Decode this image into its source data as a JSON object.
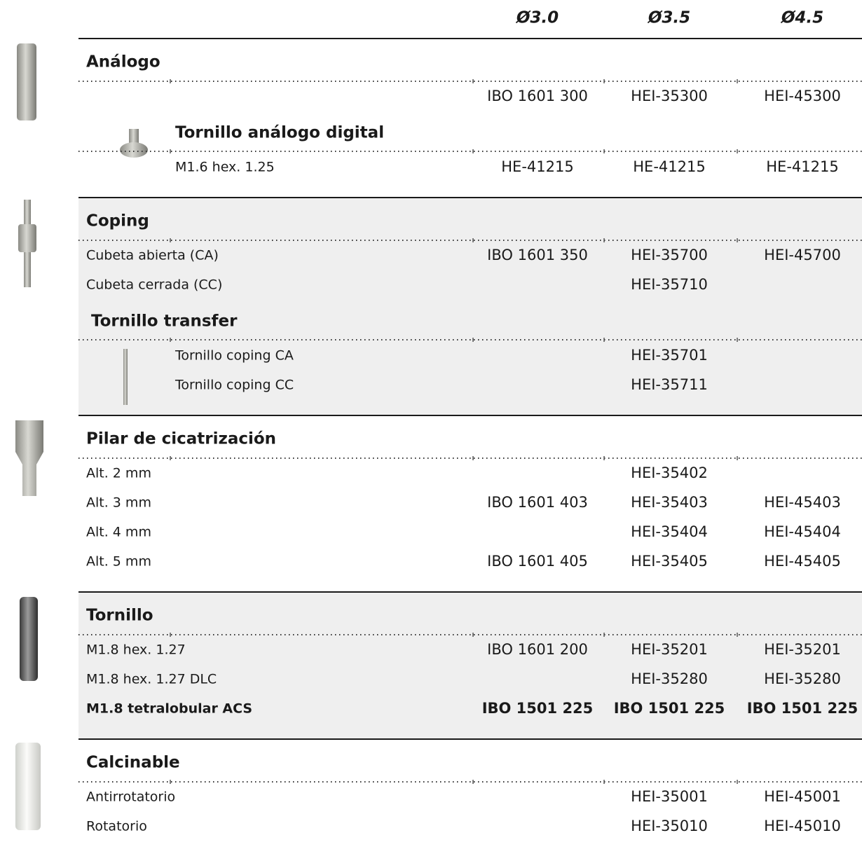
{
  "header": {
    "columns": [
      "Ø3.0",
      "Ø3.5",
      "Ø4.5"
    ]
  },
  "sections": [
    {
      "title": "Análogo",
      "rows": [
        [
          null,
          "IBO 1601 300",
          "HEI-35300",
          "HEI-45300"
        ]
      ],
      "sub": {
        "title": "Tornillo análogo digital",
        "rows": [
          [
            "M1.6 hex. 1.25",
            "HE-41215",
            "HE-41215",
            "HE-41215"
          ]
        ]
      }
    },
    {
      "title": "Coping",
      "rows": [
        [
          "Cubeta abierta (CA)",
          "IBO 1601 350",
          "HEI-35700",
          "HEI-45700"
        ],
        [
          "Cubeta cerrada (CC)",
          null,
          "HEI-35710",
          null
        ]
      ],
      "sub": {
        "title": "Tornillo transfer",
        "rows": [
          [
            "Tornillo coping CA",
            null,
            "HEI-35701",
            null
          ],
          [
            "Tornillo coping CC",
            null,
            "HEI-35711",
            null
          ]
        ]
      }
    },
    {
      "title": "Pilar de cicatrización",
      "rows": [
        [
          "Alt. 2 mm",
          null,
          "HEI-35402",
          null
        ],
        [
          "Alt. 3 mm",
          "IBO 1601 403",
          "HEI-35403",
          "HEI-45403"
        ],
        [
          "Alt. 4 mm",
          null,
          "HEI-35404",
          "HEI-45404"
        ],
        [
          "Alt. 5 mm",
          "IBO 1601 405",
          "HEI-35405",
          "HEI-45405"
        ]
      ]
    },
    {
      "title": "Tornillo",
      "rows": [
        [
          "M1.8 hex. 1.27",
          "IBO 1601 200",
          "HEI-35201",
          "HEI-35201"
        ],
        [
          "M1.8 hex. 1.27 DLC",
          null,
          "HEI-35280",
          "HEI-35280"
        ],
        [
          "M1.8 tetralobular ACS",
          "IBO 1501 225",
          "IBO 1501 225",
          "IBO 1501 225"
        ]
      ],
      "bold_rows": [
        2
      ]
    },
    {
      "title": "Calcinable",
      "rows": [
        [
          "Antirrotatorio",
          null,
          "HEI-35001",
          "HEI-45001"
        ],
        [
          "Rotatorio",
          null,
          "HEI-35010",
          "HEI-45010"
        ]
      ]
    }
  ]
}
